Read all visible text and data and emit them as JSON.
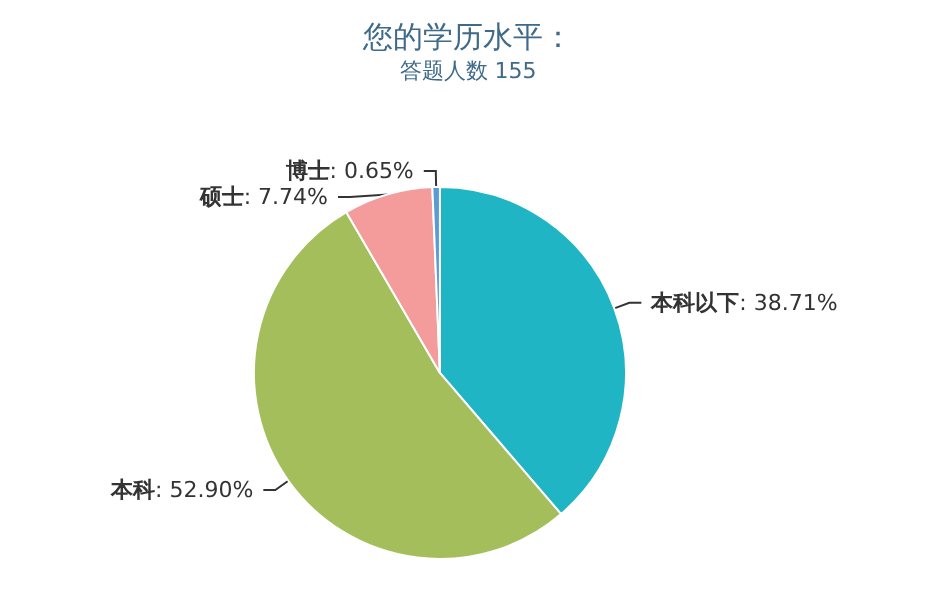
{
  "chart_data": {
    "type": "pie",
    "title": "您的学历水平：",
    "subtitle": "答题人数 155",
    "categories": [
      "本科以下",
      "本科",
      "硕士",
      "博士"
    ],
    "values": [
      38.71,
      52.9,
      7.74,
      0.65
    ],
    "colors": [
      "#1fb5c5",
      "#a3be5a",
      "#f49c9c",
      "#5b9bd5"
    ],
    "value_labels": [
      ": 38.71%",
      ": 52.90%",
      ": 7.74%",
      ": 0.65%"
    ],
    "legend": false
  }
}
